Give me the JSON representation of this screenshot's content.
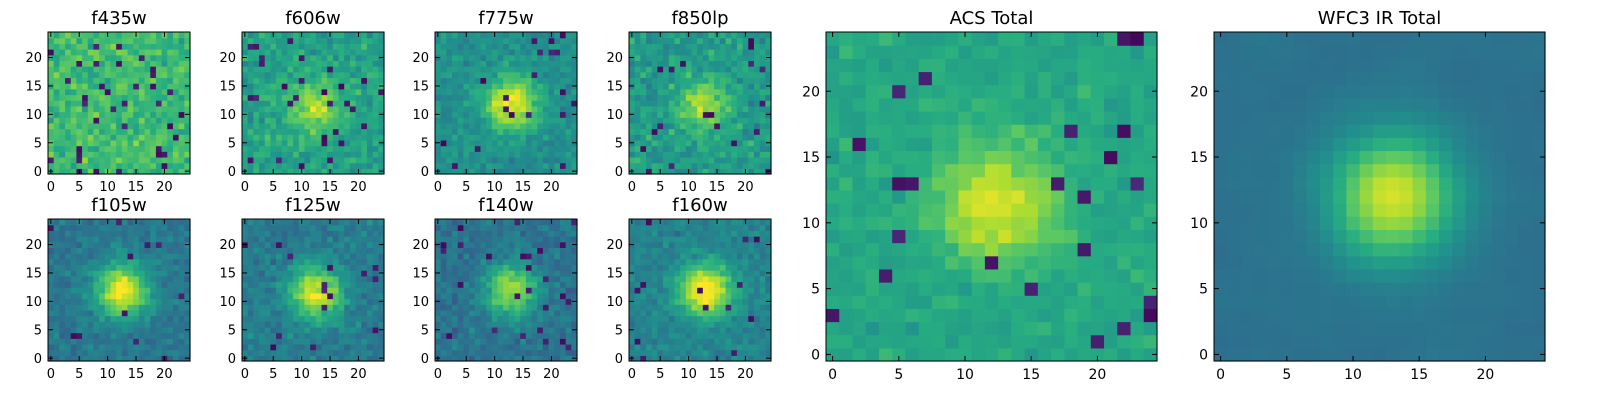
{
  "chart_data": [
    {
      "type": "heatmap",
      "title": "f435w",
      "grid": false,
      "x_range": [
        0,
        25
      ],
      "y_range": [
        0,
        25
      ],
      "x_ticks": [
        0,
        5,
        10,
        15,
        20
      ],
      "y_ticks": [
        0,
        5,
        10,
        15,
        20
      ],
      "colormap": "viridis",
      "source_center": [
        12,
        12
      ],
      "source_strength": 0.0,
      "bg_level": 0.68,
      "noise": 0.18,
      "dark_pixel_rate": 0.05,
      "seed": 11
    },
    {
      "type": "heatmap",
      "title": "f606w",
      "grid": false,
      "x_range": [
        0,
        25
      ],
      "y_range": [
        0,
        25
      ],
      "x_ticks": [
        0,
        5,
        10,
        15,
        20
      ],
      "y_ticks": [
        0,
        5,
        10,
        15,
        20
      ],
      "colormap": "viridis",
      "source_center": [
        12.5,
        11.5
      ],
      "source_strength": 0.3,
      "bg_level": 0.58,
      "noise": 0.16,
      "dark_pixel_rate": 0.04,
      "seed": 22
    },
    {
      "type": "heatmap",
      "title": "f775w",
      "grid": false,
      "x_range": [
        0,
        25
      ],
      "y_range": [
        0,
        25
      ],
      "x_ticks": [
        0,
        5,
        10,
        15,
        20
      ],
      "y_ticks": [
        0,
        5,
        10,
        15,
        20
      ],
      "colormap": "viridis",
      "source_center": [
        13,
        12
      ],
      "source_strength": 0.5,
      "bg_level": 0.5,
      "noise": 0.13,
      "dark_pixel_rate": 0.03,
      "seed": 33
    },
    {
      "type": "heatmap",
      "title": "f850lp",
      "grid": false,
      "x_range": [
        0,
        25
      ],
      "y_range": [
        0,
        25
      ],
      "x_ticks": [
        0,
        5,
        10,
        15,
        20
      ],
      "y_ticks": [
        0,
        5,
        10,
        15,
        20
      ],
      "colormap": "viridis",
      "source_center": [
        12.5,
        12
      ],
      "source_strength": 0.3,
      "bg_level": 0.55,
      "noise": 0.18,
      "dark_pixel_rate": 0.05,
      "seed": 44
    },
    {
      "type": "heatmap",
      "title": "f105w",
      "grid": false,
      "x_range": [
        0,
        25
      ],
      "y_range": [
        0,
        25
      ],
      "x_ticks": [
        0,
        5,
        10,
        15,
        20
      ],
      "y_ticks": [
        0,
        5,
        10,
        15,
        20
      ],
      "colormap": "viridis",
      "source_center": [
        12.5,
        12
      ],
      "source_strength": 0.6,
      "bg_level": 0.4,
      "noise": 0.12,
      "dark_pixel_rate": 0.02,
      "seed": 55
    },
    {
      "type": "heatmap",
      "title": "f125w",
      "grid": false,
      "x_range": [
        0,
        25
      ],
      "y_range": [
        0,
        25
      ],
      "x_ticks": [
        0,
        5,
        10,
        15,
        20
      ],
      "y_ticks": [
        0,
        5,
        10,
        15,
        20
      ],
      "colormap": "viridis",
      "source_center": [
        12.5,
        11.5
      ],
      "source_strength": 0.55,
      "bg_level": 0.42,
      "noise": 0.13,
      "dark_pixel_rate": 0.02,
      "seed": 66
    },
    {
      "type": "heatmap",
      "title": "f140w",
      "grid": false,
      "x_range": [
        0,
        25
      ],
      "y_range": [
        0,
        25
      ],
      "x_ticks": [
        0,
        5,
        10,
        15,
        20
      ],
      "y_ticks": [
        0,
        5,
        10,
        15,
        20
      ],
      "colormap": "viridis",
      "source_center": [
        13,
        12
      ],
      "source_strength": 0.5,
      "bg_level": 0.38,
      "noise": 0.13,
      "dark_pixel_rate": 0.03,
      "seed": 77
    },
    {
      "type": "heatmap",
      "title": "f160w",
      "grid": false,
      "x_range": [
        0,
        25
      ],
      "y_range": [
        0,
        25
      ],
      "x_ticks": [
        0,
        5,
        10,
        15,
        20
      ],
      "y_ticks": [
        0,
        5,
        10,
        15,
        20
      ],
      "colormap": "viridis",
      "source_center": [
        13,
        12
      ],
      "source_strength": 0.6,
      "bg_level": 0.45,
      "noise": 0.12,
      "dark_pixel_rate": 0.02,
      "seed": 88
    },
    {
      "type": "heatmap",
      "title": "ACS Total",
      "grid": false,
      "x_range": [
        0,
        25
      ],
      "y_range": [
        0,
        25
      ],
      "x_ticks": [
        0,
        5,
        10,
        15,
        20
      ],
      "y_ticks": [
        0,
        5,
        10,
        15,
        20
      ],
      "colormap": "viridis",
      "source_center": [
        12.5,
        11.5
      ],
      "source_strength": 0.35,
      "bg_level": 0.6,
      "noise": 0.1,
      "dark_pixel_rate": 0.025,
      "seed": 99
    },
    {
      "type": "heatmap",
      "title": "WFC3 IR Total",
      "grid": false,
      "x_range": [
        0,
        25
      ],
      "y_range": [
        0,
        25
      ],
      "x_ticks": [
        0,
        5,
        10,
        15,
        20
      ],
      "y_ticks": [
        0,
        5,
        10,
        15,
        20
      ],
      "colormap": "viridis",
      "source_center": [
        13,
        12
      ],
      "source_strength": 0.6,
      "bg_level": 0.38,
      "noise": 0.06,
      "dark_pixel_rate": 0.0,
      "seed": 111
    }
  ]
}
